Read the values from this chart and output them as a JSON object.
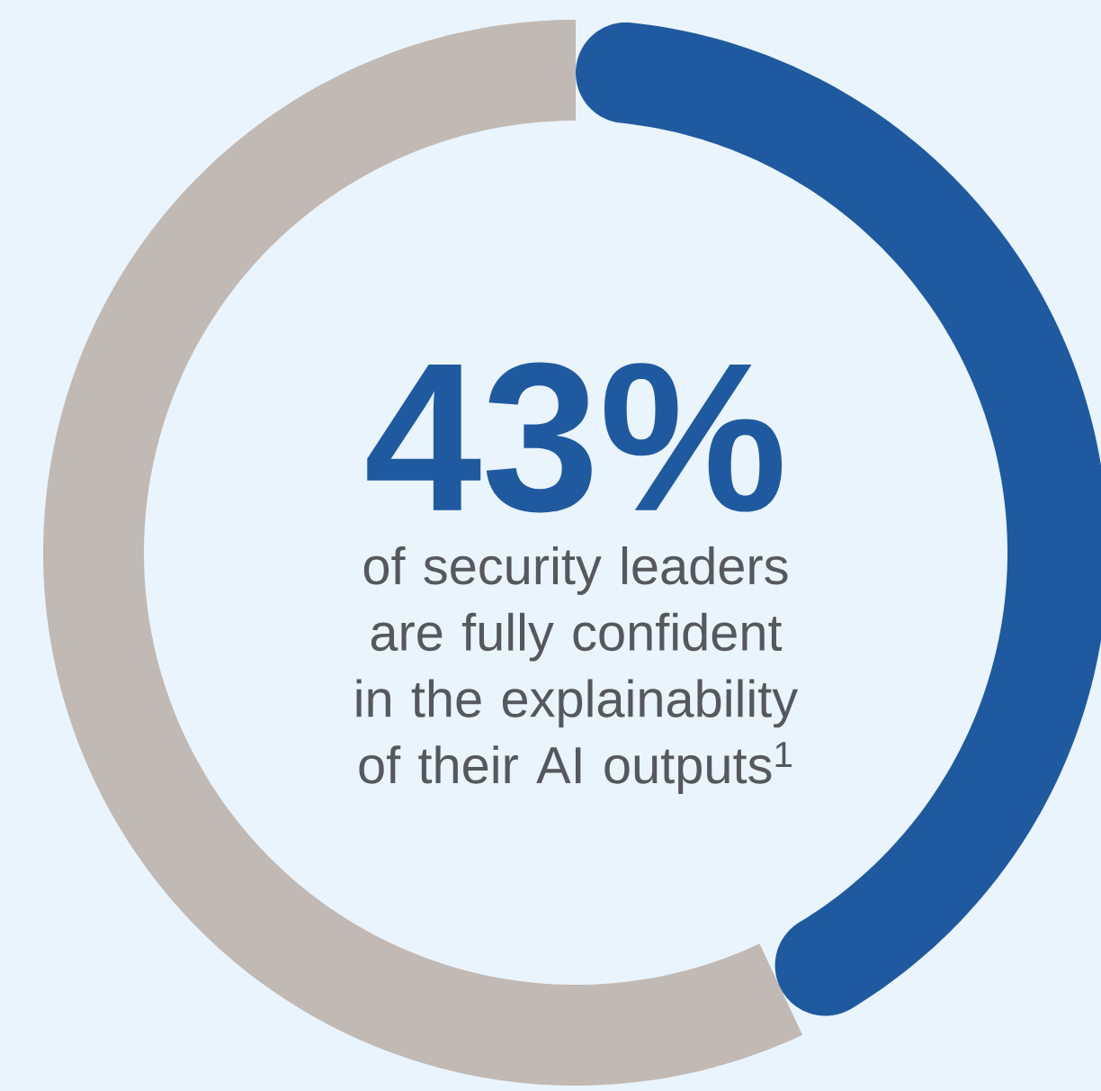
{
  "chart_data": {
    "type": "donut",
    "categories": [
      null,
      null
    ],
    "values": [
      43,
      57
    ],
    "colors": [
      "#1f5aa0",
      "#c1b9b3"
    ],
    "value_labels": [
      "43%",
      null
    ],
    "annotations": [
      "of security leaders are fully confident in the explainability of their AI outputs$^{1}$"
    ]
  }
}
